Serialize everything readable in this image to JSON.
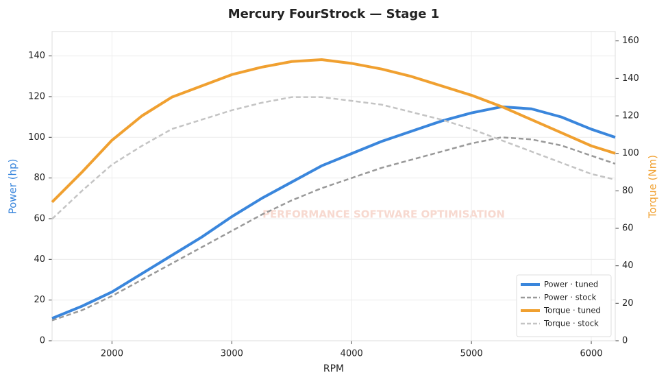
{
  "chart_data": {
    "type": "line",
    "title": "Mercury FourStrock — Stage 1",
    "x_label": "RPM",
    "y_label": "Power (hp)",
    "y2_label": "Torque (Nm)",
    "watermark": "PERFORMANCE SOFTWARE OPTIMISATION",
    "x": [
      1500,
      1750,
      2000,
      2250,
      2500,
      2750,
      3000,
      3250,
      3500,
      3750,
      4000,
      4250,
      4500,
      4750,
      5000,
      5250,
      5500,
      5750,
      6000,
      6200
    ],
    "series": [
      {
        "name": "Power · tuned",
        "color": "#3a86dc",
        "linestyle": "solid",
        "axis": "y",
        "values": [
          11,
          17,
          24,
          33,
          42,
          51,
          61,
          70,
          78,
          86,
          92,
          98,
          103,
          108,
          112,
          115,
          114,
          110,
          104,
          100
        ]
      },
      {
        "name": "Power · stock",
        "color": "#999999",
        "linestyle": "dashed",
        "axis": "y",
        "values": [
          10,
          15,
          22,
          30,
          38,
          46,
          54,
          62,
          69,
          75,
          80,
          85,
          89,
          93,
          97,
          100,
          99,
          96,
          91,
          87
        ]
      },
      {
        "name": "Torque · tuned",
        "color": "#f0a030",
        "linestyle": "solid",
        "axis": "y2",
        "values": [
          74,
          90,
          107,
          120,
          130,
          136,
          142,
          146,
          149,
          150,
          148,
          145,
          141,
          136,
          131,
          125,
          118,
          111,
          104,
          100
        ]
      },
      {
        "name": "Torque · stock",
        "color": "#c4c4c4",
        "linestyle": "dashed",
        "axis": "y2",
        "values": [
          65,
          80,
          94,
          104,
          113,
          118,
          123,
          127,
          130,
          130,
          128,
          126,
          122,
          118,
          113,
          107,
          101,
          95,
          89,
          86
        ]
      }
    ],
    "xlim": [
      1500,
      6200
    ],
    "xticks": [
      2000,
      3000,
      4000,
      5000,
      6000
    ],
    "ylim": [
      0,
      152
    ],
    "yticks": [
      0,
      20,
      40,
      60,
      80,
      100,
      120,
      140
    ],
    "y2lim": [
      0,
      165
    ],
    "y2ticks": [
      0,
      20,
      40,
      60,
      80,
      100,
      120,
      140,
      160
    ],
    "grid": true,
    "legend": "lower-right"
  }
}
